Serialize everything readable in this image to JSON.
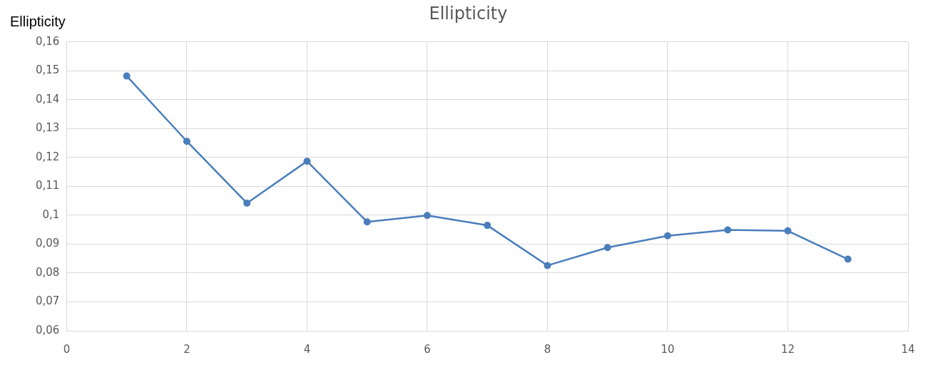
{
  "chart_data": {
    "type": "line",
    "title": "Ellipticity",
    "ylabel": "Ellipticity",
    "x": [
      1,
      2,
      3,
      4,
      5,
      6,
      7,
      8,
      9,
      10,
      11,
      12,
      13
    ],
    "series": [
      {
        "color": "#4a7ebb",
        "values": [
          0.1482,
          0.1256,
          0.1042,
          0.1187,
          0.0977,
          0.0999,
          0.0965,
          0.0826,
          0.0888,
          0.0929,
          0.0949,
          0.0946,
          0.0848
        ]
      }
    ],
    "xlim": [
      0,
      14
    ],
    "xticks": [
      0,
      2,
      4,
      6,
      8,
      10,
      12,
      14
    ],
    "ylim": [
      0.06,
      0.16
    ],
    "yticks": [
      {
        "value": 0.06,
        "label": "0,06"
      },
      {
        "value": 0.07,
        "label": "0,07"
      },
      {
        "value": 0.08,
        "label": "0,08"
      },
      {
        "value": 0.09,
        "label": "0,09"
      },
      {
        "value": 0.1,
        "label": "0,1"
      },
      {
        "value": 0.11,
        "label": "0,11"
      },
      {
        "value": 0.12,
        "label": "0,12"
      },
      {
        "value": 0.13,
        "label": "0,13"
      },
      {
        "value": 0.14,
        "label": "0,14"
      },
      {
        "value": 0.15,
        "label": "0,15"
      },
      {
        "value": 0.16,
        "label": "0,16"
      }
    ],
    "grid": true,
    "legend": false,
    "marker": "circle",
    "line_style": "solid"
  }
}
